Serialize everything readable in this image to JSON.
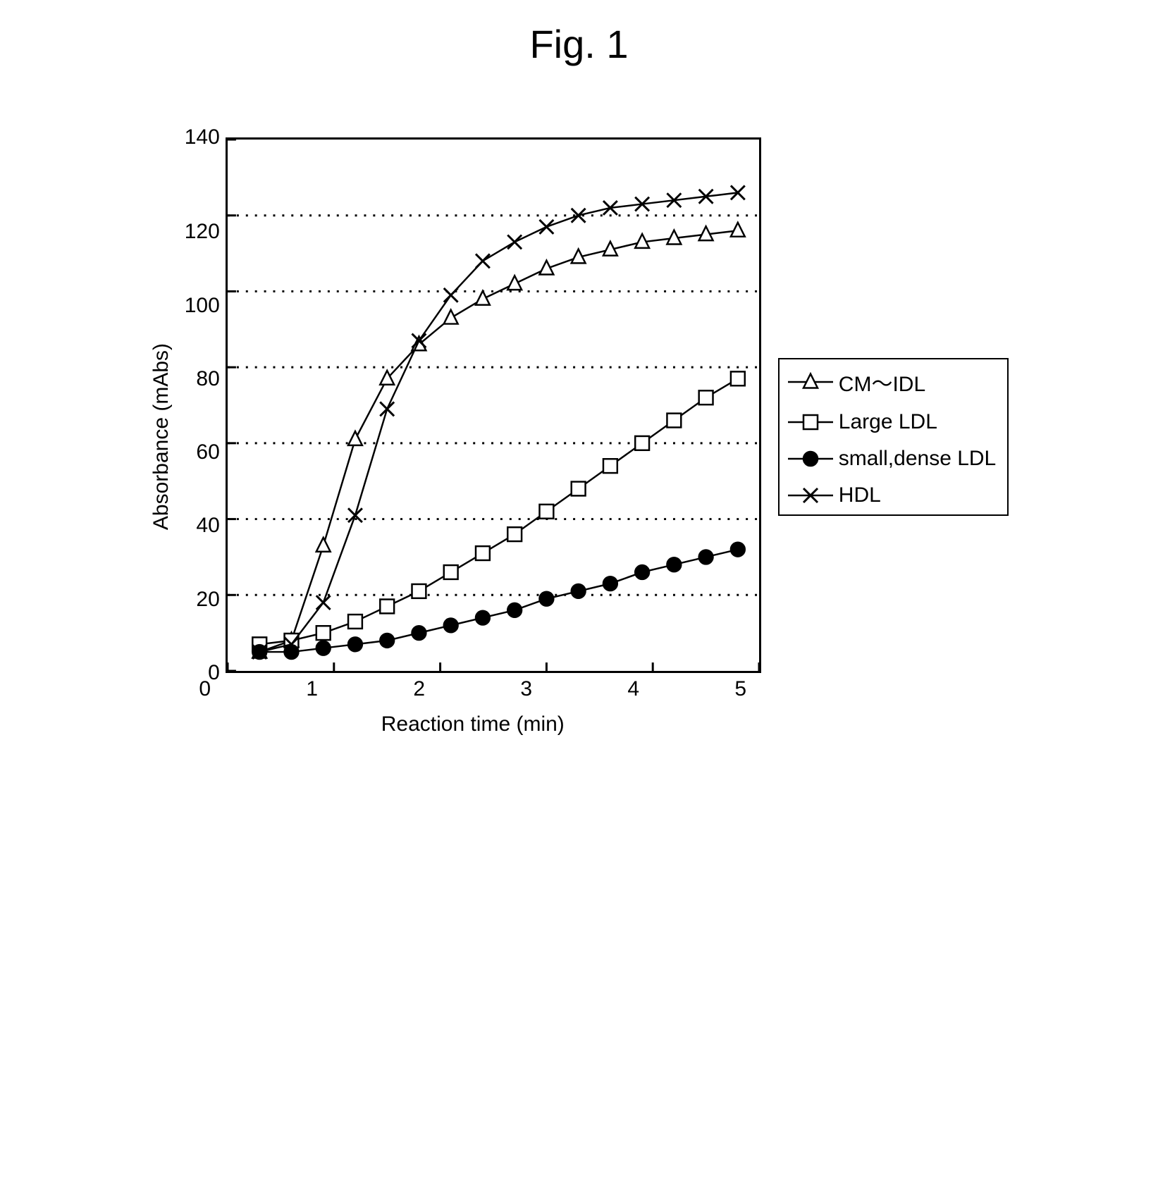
{
  "figure_title": "Fig. 1",
  "chart": {
    "type": "line",
    "xlabel": "Reaction time (min)",
    "ylabel": "Absorbance (mAbs)",
    "xlim": [
      0,
      5
    ],
    "ylim": [
      0,
      140
    ],
    "xtick_step": 1,
    "ytick_step": 20,
    "xticks": [
      0,
      1,
      2,
      3,
      4,
      5
    ],
    "yticks": [
      0,
      20,
      40,
      60,
      80,
      100,
      120,
      140
    ],
    "grid_color": "#000000",
    "grid_style": "dotted",
    "background_color": "#ffffff",
    "border_color": "#000000",
    "border_width": 3,
    "line_color": "#000000",
    "line_width": 2.5,
    "label_fontsize": 30,
    "tick_fontsize": 30,
    "title_fontsize": 56,
    "marker_size": 10,
    "legend_position": "right-middle",
    "legend_border_color": "#000000",
    "x_values": [
      0.3,
      0.6,
      0.9,
      1.2,
      1.5,
      1.8,
      2.1,
      2.4,
      2.7,
      3.0,
      3.3,
      3.6,
      3.9,
      4.2,
      4.5,
      4.8
    ],
    "series": [
      {
        "label": "CM～IDL",
        "marker": "triangle",
        "marker_fill": "#ffffff",
        "marker_stroke": "#000000",
        "y": [
          5,
          8,
          33,
          61,
          77,
          86,
          93,
          98,
          102,
          106,
          109,
          111,
          113,
          114,
          115,
          116
        ]
      },
      {
        "label": "Large LDL",
        "marker": "square",
        "marker_fill": "#ffffff",
        "marker_stroke": "#000000",
        "y": [
          7,
          8,
          10,
          13,
          17,
          21,
          26,
          31,
          36,
          42,
          48,
          54,
          60,
          66,
          72,
          77
        ]
      },
      {
        "label": "small,dense LDL",
        "marker": "circle",
        "marker_fill": "#000000",
        "marker_stroke": "#000000",
        "y": [
          5,
          5,
          6,
          7,
          8,
          10,
          12,
          14,
          16,
          19,
          21,
          23,
          26,
          28,
          30,
          32
        ]
      },
      {
        "label": "HDL",
        "marker": "x",
        "marker_fill": "none",
        "marker_stroke": "#000000",
        "y": [
          5,
          7,
          18,
          41,
          69,
          87,
          99,
          108,
          113,
          117,
          120,
          122,
          123,
          124,
          125,
          126
        ]
      }
    ]
  }
}
